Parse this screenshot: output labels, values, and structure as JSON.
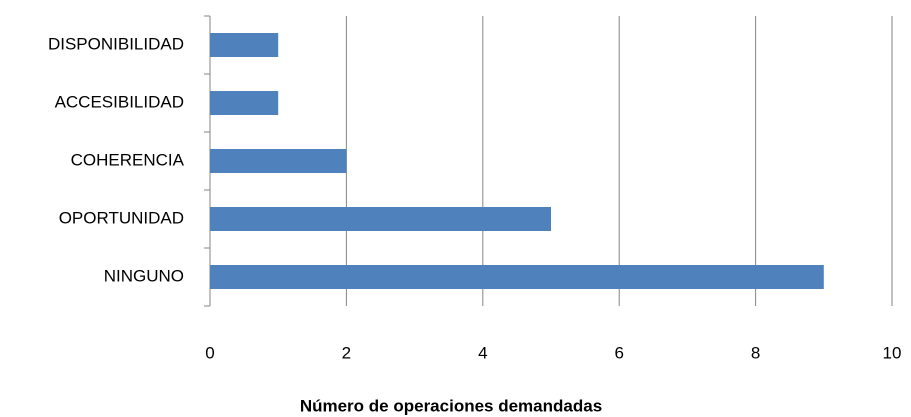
{
  "chart_data": {
    "type": "bar",
    "orientation": "horizontal",
    "categories": [
      "DISPONIBILIDAD",
      "ACCESIBILIDAD",
      "COHERENCIA",
      "OPORTUNIDAD",
      "NINGUNO"
    ],
    "values": [
      1,
      1,
      2,
      5,
      9
    ],
    "color": "#4f81bd",
    "x_label": "Número de operaciones  demandadas",
    "xlim": [
      0,
      10
    ],
    "xticks": [
      0,
      2,
      4,
      6,
      8,
      10
    ],
    "grid": true
  }
}
